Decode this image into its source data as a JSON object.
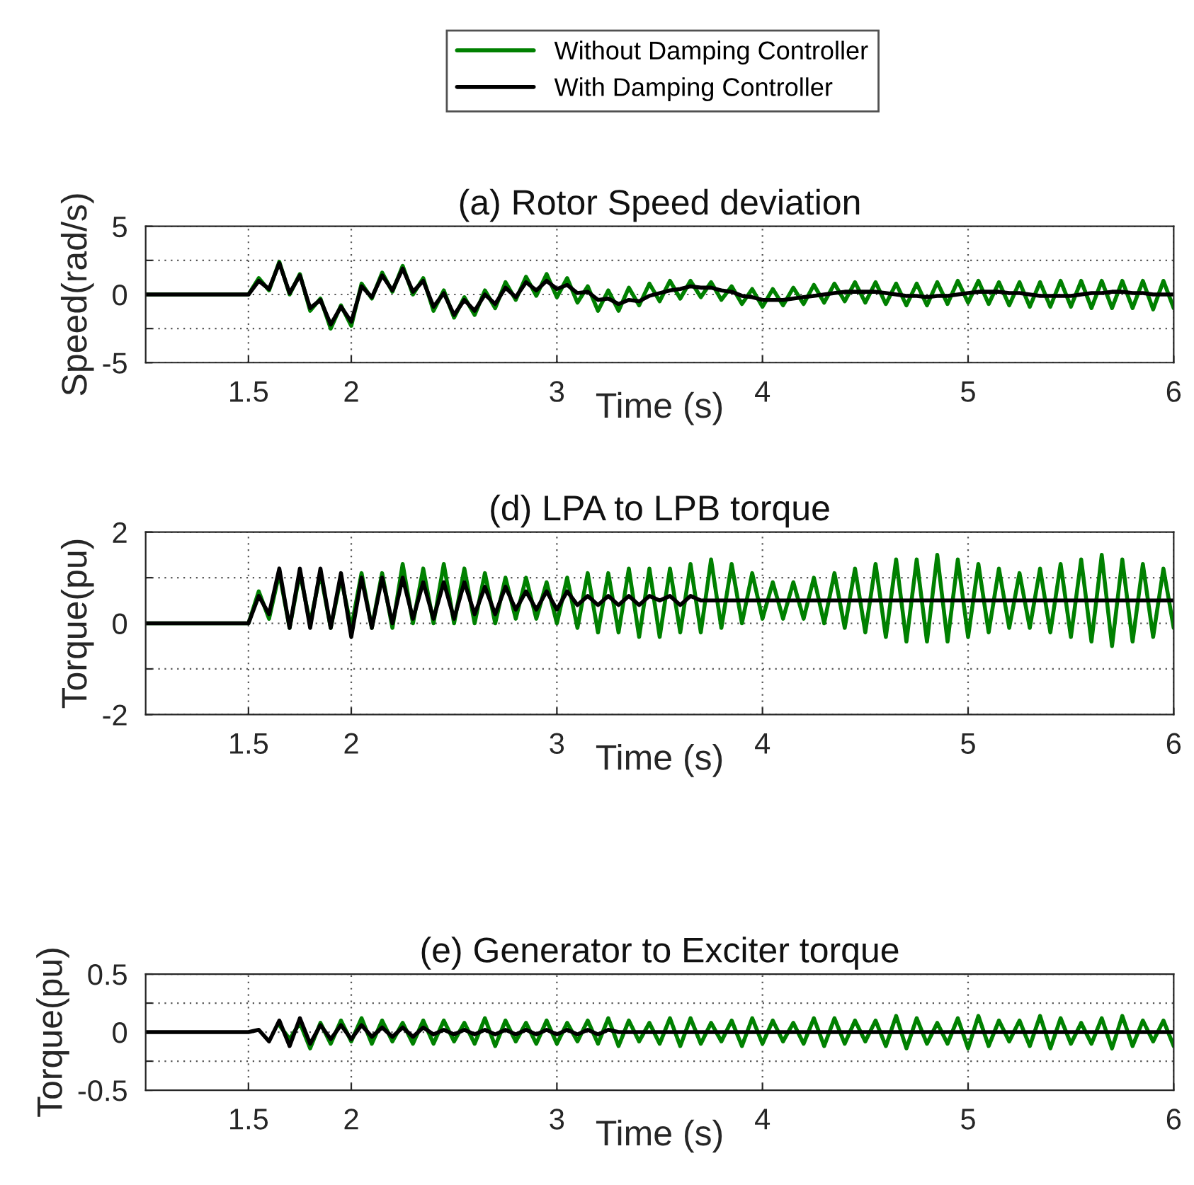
{
  "chart_data": [
    {
      "type": "line",
      "title": "(a) Rotor Speed deviation",
      "xlabel": "Time (s)",
      "ylabel": "Speed(rad/s)",
      "legend": "top",
      "grid": true,
      "line_style": "solid",
      "xlim": [
        1.0,
        6.0
      ],
      "xticks": [
        1.5,
        2,
        3,
        4,
        5,
        6
      ],
      "ylim": [
        -5,
        5
      ],
      "yticks": [
        -5,
        {
          "value": -2.5,
          "label": null
        },
        0,
        {
          "value": 2.5,
          "label": null
        },
        5
      ],
      "x": [
        1.0,
        1.5,
        1.55,
        1.6,
        1.65,
        1.7,
        1.75,
        1.8,
        1.85,
        1.9,
        1.95,
        2.0,
        2.05,
        2.1,
        2.15,
        2.2,
        2.25,
        2.3,
        2.35,
        2.4,
        2.45,
        2.5,
        2.55,
        2.6,
        2.65,
        2.7,
        2.75,
        2.8,
        2.85,
        2.9,
        2.95,
        3.0,
        3.05,
        3.1,
        3.15,
        3.2,
        3.25,
        3.3,
        3.35,
        3.4,
        3.45,
        3.5,
        3.55,
        3.6,
        3.65,
        3.7,
        3.75,
        3.8,
        3.85,
        3.9,
        3.95,
        4.0,
        4.05,
        4.1,
        4.15,
        4.2,
        4.25,
        4.3,
        4.35,
        4.4,
        4.45,
        4.5,
        4.55,
        4.6,
        4.65,
        4.7,
        4.75,
        4.8,
        4.85,
        4.9,
        4.95,
        5.0,
        5.05,
        5.1,
        5.15,
        5.2,
        5.25,
        5.3,
        5.35,
        5.4,
        5.45,
        5.5,
        5.55,
        5.6,
        5.65,
        5.7,
        5.75,
        5.8,
        5.85,
        5.9,
        5.95,
        6.0
      ],
      "series": [
        {
          "name": "Without Damping Controller",
          "color": "#008000",
          "values": [
            0,
            0,
            1.2,
            0.3,
            2.4,
            0.0,
            1.5,
            -1.2,
            -0.3,
            -2.5,
            -0.8,
            -2.3,
            0.8,
            -0.3,
            1.6,
            0.2,
            2.1,
            0.0,
            1.2,
            -1.2,
            0.3,
            -1.7,
            -0.2,
            -1.5,
            0.3,
            -1.0,
            0.9,
            -0.4,
            1.3,
            -0.1,
            1.5,
            -0.2,
            1.2,
            -0.6,
            0.6,
            -1.2,
            0.3,
            -1.2,
            0.5,
            -0.8,
            0.8,
            -0.5,
            1.0,
            -0.3,
            1.0,
            -0.2,
            0.9,
            -0.4,
            0.6,
            -0.7,
            0.4,
            -0.9,
            0.4,
            -0.8,
            0.5,
            -0.7,
            0.7,
            -0.6,
            0.8,
            -0.5,
            0.9,
            -0.6,
            0.9,
            -0.7,
            0.8,
            -0.8,
            0.8,
            -0.8,
            0.9,
            -0.7,
            1.0,
            -0.6,
            1.0,
            -0.7,
            0.9,
            -0.8,
            0.9,
            -0.9,
            0.9,
            -0.9,
            1.0,
            -0.9,
            1.0,
            -1.0,
            1.0,
            -1.0,
            1.0,
            -1.0,
            1.0,
            -1.1,
            1.0,
            -1.0
          ]
        },
        {
          "name": "With Damping Controller",
          "color": "#000000",
          "values": [
            0,
            0,
            1.0,
            0.4,
            2.3,
            0.1,
            1.4,
            -1.0,
            -0.4,
            -2.2,
            -0.9,
            -2.0,
            0.6,
            -0.2,
            1.4,
            0.3,
            1.9,
            0.2,
            1.0,
            -0.9,
            0.1,
            -1.5,
            -0.4,
            -1.2,
            0.0,
            -0.7,
            0.5,
            -0.2,
            0.9,
            0.3,
            1.0,
            0.4,
            0.7,
            0.1,
            0.2,
            -0.4,
            -0.3,
            -0.7,
            -0.4,
            -0.5,
            -0.1,
            0.1,
            0.3,
            0.4,
            0.6,
            0.5,
            0.5,
            0.3,
            0.2,
            -0.1,
            -0.2,
            -0.4,
            -0.4,
            -0.4,
            -0.3,
            -0.2,
            -0.1,
            0.0,
            0.1,
            0.2,
            0.2,
            0.2,
            0.2,
            0.1,
            0.0,
            -0.1,
            -0.1,
            -0.2,
            -0.1,
            -0.1,
            0.0,
            0.1,
            0.2,
            0.2,
            0.2,
            0.1,
            0.1,
            0.0,
            -0.1,
            -0.1,
            -0.1,
            -0.1,
            0.0,
            0.1,
            0.1,
            0.2,
            0.2,
            0.1,
            0.1,
            0.0,
            0.0,
            0.0
          ]
        }
      ]
    },
    {
      "type": "line",
      "title": "(d) LPA to LPB torque",
      "xlabel": "Time (s)",
      "ylabel": "Torque(pu)",
      "grid": true,
      "line_style": "solid",
      "xlim": [
        1.0,
        6.0
      ],
      "xticks": [
        1.5,
        2,
        3,
        4,
        5,
        6
      ],
      "ylim": [
        -2,
        2
      ],
      "yticks": [
        -2,
        {
          "value": -1,
          "label": null
        },
        0,
        {
          "value": 1,
          "label": null
        },
        2
      ],
      "x": [
        1.0,
        1.5,
        1.55,
        1.6,
        1.65,
        1.7,
        1.75,
        1.8,
        1.85,
        1.9,
        1.95,
        2.0,
        2.05,
        2.1,
        2.15,
        2.2,
        2.25,
        2.3,
        2.35,
        2.4,
        2.45,
        2.5,
        2.55,
        2.6,
        2.65,
        2.7,
        2.75,
        2.8,
        2.85,
        2.9,
        2.95,
        3.0,
        3.05,
        3.1,
        3.15,
        3.2,
        3.25,
        3.3,
        3.35,
        3.4,
        3.45,
        3.5,
        3.55,
        3.6,
        3.65,
        3.7,
        3.75,
        3.8,
        3.85,
        3.9,
        3.95,
        4.0,
        4.05,
        4.1,
        4.15,
        4.2,
        4.25,
        4.3,
        4.35,
        4.4,
        4.45,
        4.5,
        4.55,
        4.6,
        4.65,
        4.7,
        4.75,
        4.8,
        4.85,
        4.9,
        4.95,
        5.0,
        5.05,
        5.1,
        5.15,
        5.2,
        5.25,
        5.3,
        5.35,
        5.4,
        5.45,
        5.5,
        5.55,
        5.6,
        5.65,
        5.7,
        5.75,
        5.8,
        5.85,
        5.9,
        5.95,
        6.0
      ],
      "series": [
        {
          "color": "#008000",
          "values": [
            0,
            0,
            0.7,
            0.1,
            1.1,
            -0.1,
            1.1,
            0.0,
            1.1,
            -0.1,
            1.0,
            -0.1,
            1.1,
            -0.1,
            1.1,
            -0.1,
            1.3,
            0.0,
            1.2,
            0.0,
            1.3,
            0.0,
            1.2,
            0.0,
            1.1,
            0.0,
            1.0,
            0.1,
            1.0,
            0.1,
            0.9,
            0.0,
            1.0,
            -0.1,
            1.1,
            -0.2,
            1.1,
            -0.2,
            1.2,
            -0.3,
            1.2,
            -0.3,
            1.2,
            -0.2,
            1.3,
            -0.2,
            1.4,
            -0.1,
            1.3,
            0.0,
            1.1,
            0.1,
            0.9,
            0.1,
            0.9,
            0.1,
            1.0,
            0.0,
            1.1,
            -0.1,
            1.2,
            -0.2,
            1.3,
            -0.3,
            1.4,
            -0.4,
            1.4,
            -0.4,
            1.5,
            -0.4,
            1.4,
            -0.3,
            1.3,
            -0.2,
            1.2,
            -0.1,
            1.1,
            -0.1,
            1.2,
            -0.2,
            1.3,
            -0.3,
            1.4,
            -0.4,
            1.5,
            -0.5,
            1.4,
            -0.4,
            1.3,
            -0.3,
            1.2,
            -0.1
          ]
        },
        {
          "color": "#000000",
          "values": [
            0,
            0,
            0.6,
            0.2,
            1.2,
            -0.1,
            1.2,
            -0.1,
            1.2,
            -0.1,
            1.1,
            -0.3,
            1.0,
            -0.1,
            1.0,
            0.0,
            1.0,
            0.1,
            0.9,
            0.1,
            0.9,
            0.1,
            0.9,
            0.2,
            0.8,
            0.2,
            0.8,
            0.3,
            0.7,
            0.3,
            0.7,
            0.3,
            0.7,
            0.4,
            0.6,
            0.4,
            0.6,
            0.4,
            0.6,
            0.4,
            0.6,
            0.5,
            0.6,
            0.4,
            0.6,
            0.5,
            0.5,
            0.5,
            0.5,
            0.5,
            0.5,
            0.5,
            0.5,
            0.5,
            0.5,
            0.5,
            0.5,
            0.5,
            0.5,
            0.5,
            0.5,
            0.5,
            0.5,
            0.5,
            0.5,
            0.5,
            0.5,
            0.5,
            0.5,
            0.5,
            0.5,
            0.5,
            0.5,
            0.5,
            0.5,
            0.5,
            0.5,
            0.5,
            0.5,
            0.5,
            0.5,
            0.5,
            0.5,
            0.5,
            0.5,
            0.5,
            0.5,
            0.5,
            0.5,
            0.5,
            0.5,
            0.5
          ]
        }
      ]
    },
    {
      "type": "line",
      "title": "(e) Generator to Exciter torque",
      "xlabel": "Time (s)",
      "ylabel": "Torque(pu)",
      "grid": true,
      "line_style": "solid",
      "xlim": [
        1.0,
        6.0
      ],
      "xticks": [
        1.5,
        2,
        3,
        4,
        5,
        6
      ],
      "ylim": [
        -0.5,
        0.5
      ],
      "yticks": [
        -0.5,
        {
          "value": -0.25,
          "label": null
        },
        0,
        {
          "value": 0.25,
          "label": null
        },
        0.5
      ],
      "x": [
        1.0,
        1.5,
        1.55,
        1.6,
        1.65,
        1.7,
        1.75,
        1.8,
        1.85,
        1.9,
        1.95,
        2.0,
        2.05,
        2.1,
        2.15,
        2.2,
        2.25,
        2.3,
        2.35,
        2.4,
        2.45,
        2.5,
        2.55,
        2.6,
        2.65,
        2.7,
        2.75,
        2.8,
        2.85,
        2.9,
        2.95,
        3.0,
        3.05,
        3.1,
        3.15,
        3.2,
        3.25,
        3.3,
        3.35,
        3.4,
        3.45,
        3.5,
        3.55,
        3.6,
        3.65,
        3.7,
        3.75,
        3.8,
        3.85,
        3.9,
        3.95,
        4.0,
        4.05,
        4.1,
        4.15,
        4.2,
        4.25,
        4.3,
        4.35,
        4.4,
        4.45,
        4.5,
        4.55,
        4.6,
        4.65,
        4.7,
        4.75,
        4.8,
        4.85,
        4.9,
        4.95,
        5.0,
        5.05,
        5.1,
        5.15,
        5.2,
        5.25,
        5.3,
        5.35,
        5.4,
        5.45,
        5.5,
        5.55,
        5.6,
        5.65,
        5.7,
        5.75,
        5.8,
        5.85,
        5.9,
        5.95,
        6.0
      ],
      "series": [
        {
          "color": "#008000",
          "values": [
            null,
            null,
            null,
            null,
            0.06,
            -0.06,
            0.08,
            -0.14,
            0.08,
            -0.1,
            0.1,
            -0.08,
            0.12,
            -0.1,
            0.1,
            -0.08,
            0.08,
            -0.1,
            0.1,
            -0.1,
            0.1,
            -0.08,
            0.08,
            -0.1,
            0.12,
            -0.12,
            0.1,
            -0.08,
            0.08,
            -0.1,
            0.1,
            -0.1,
            0.08,
            -0.08,
            0.1,
            -0.1,
            0.12,
            -0.12,
            0.1,
            -0.08,
            0.08,
            -0.1,
            0.12,
            -0.12,
            0.12,
            -0.1,
            0.08,
            -0.08,
            0.1,
            -0.12,
            0.12,
            -0.1,
            0.1,
            -0.08,
            0.08,
            -0.1,
            0.12,
            -0.12,
            0.12,
            -0.1,
            0.1,
            -0.08,
            0.1,
            -0.12,
            0.14,
            -0.14,
            0.12,
            -0.1,
            0.08,
            -0.1,
            0.12,
            -0.14,
            0.14,
            -0.12,
            0.1,
            -0.08,
            0.1,
            -0.12,
            0.14,
            -0.14,
            0.12,
            -0.1,
            0.08,
            -0.1,
            0.12,
            -0.14,
            0.14,
            -0.12,
            0.1,
            -0.08,
            0.1,
            -0.12
          ]
        },
        {
          "color": "#000000",
          "values": [
            0,
            0,
            0.02,
            -0.08,
            0.1,
            -0.12,
            0.12,
            -0.1,
            0.06,
            -0.06,
            0.06,
            -0.06,
            0.06,
            -0.04,
            0.04,
            -0.04,
            0.04,
            -0.04,
            0.04,
            -0.02,
            0.02,
            -0.02,
            0.02,
            -0.02,
            0.02,
            -0.02,
            0.02,
            -0.02,
            0.02,
            -0.02,
            0.02,
            -0.02,
            0.02,
            -0.02,
            0.02,
            -0.02,
            0.02,
            0,
            0,
            0,
            0,
            0,
            0,
            0,
            0,
            0,
            0,
            0,
            0,
            0,
            0,
            0,
            0,
            0,
            0,
            0,
            0,
            0,
            0,
            0,
            0,
            0,
            0,
            0,
            0,
            0,
            0,
            0,
            0,
            0,
            0,
            0,
            0,
            0,
            0,
            0,
            0,
            0,
            0,
            0,
            0,
            0,
            0,
            0,
            0,
            0,
            0,
            0,
            0,
            0,
            0,
            0
          ]
        }
      ]
    }
  ]
}
